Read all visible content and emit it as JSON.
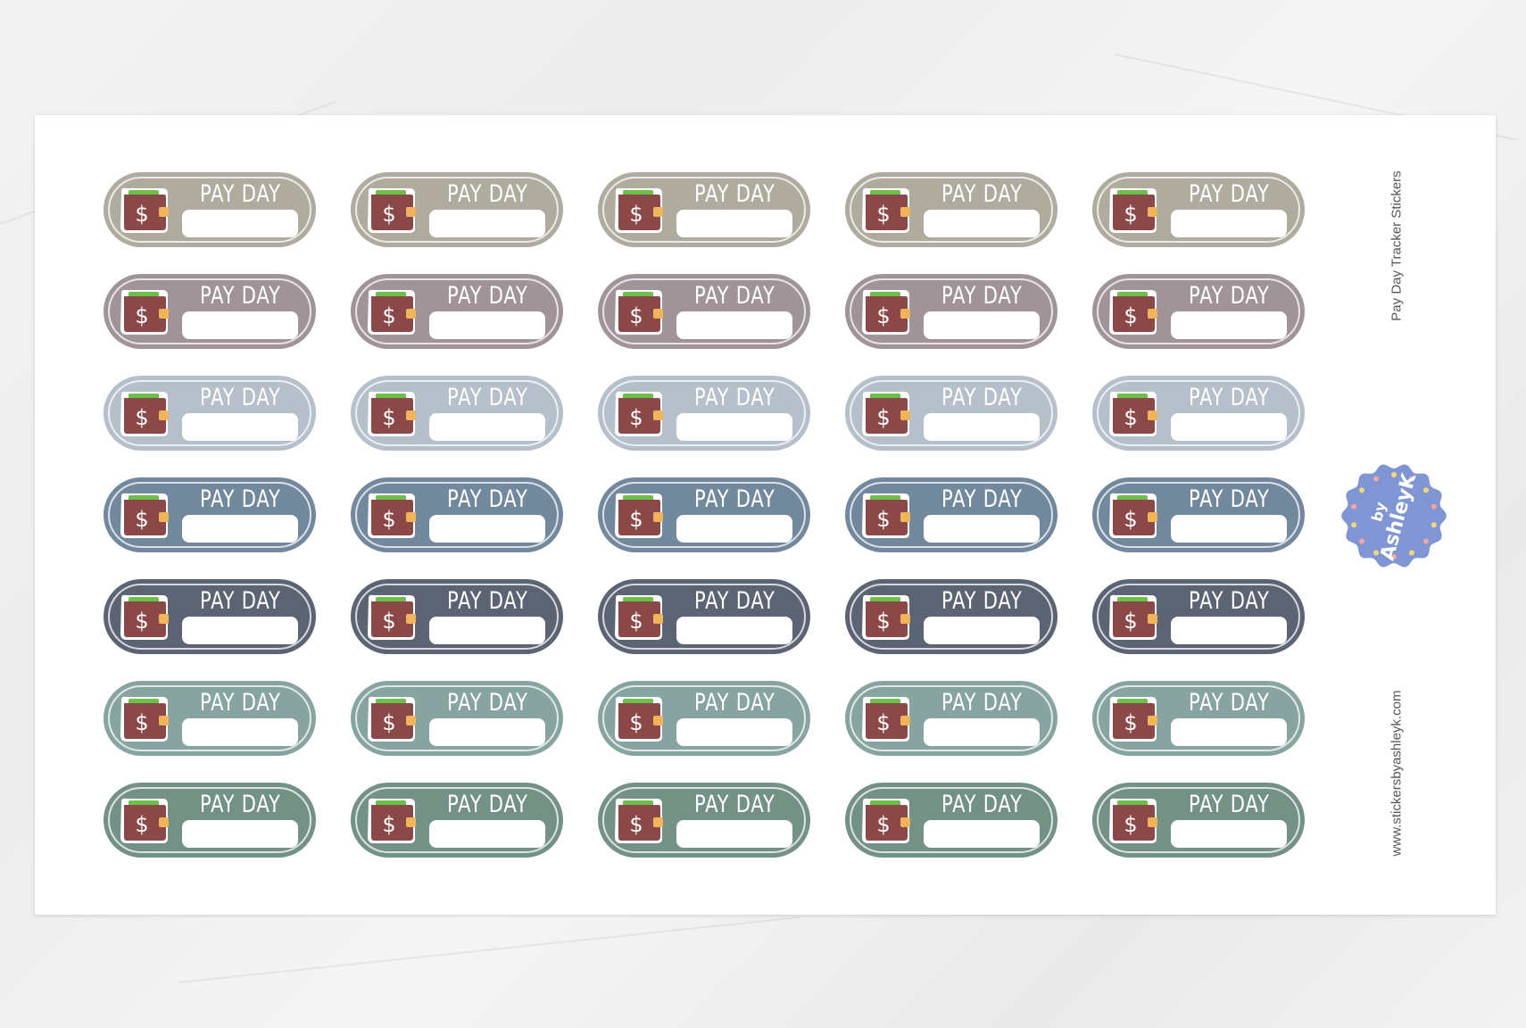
{
  "sheet": {
    "sticker_label": "PAY DAY",
    "columns": 5,
    "rows": [
      {
        "color": "#b0ab9f"
      },
      {
        "color": "#a19499"
      },
      {
        "color": "#b5c0ca"
      },
      {
        "color": "#72889d"
      },
      {
        "color": "#5c6373"
      },
      {
        "color": "#87a4a0"
      },
      {
        "color": "#749186"
      }
    ],
    "wallet_colors": {
      "body": "#8b4848",
      "clasp": "#f0b45a",
      "money": "#6cc04a"
    }
  },
  "side": {
    "product_title": "Pay Day Tracker Stickers",
    "website": "www.stickersbyashleyk.com",
    "badge": {
      "line1": "by",
      "line2": "AshleyK",
      "color": "#8096d4"
    }
  }
}
